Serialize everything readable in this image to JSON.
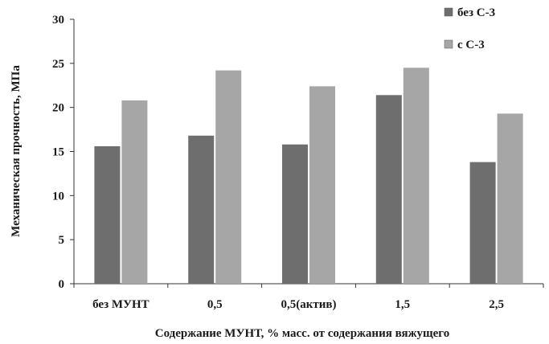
{
  "chart_data": {
    "type": "bar",
    "categories": [
      "без МУНТ",
      "0,5",
      "0,5(актив)",
      "1,5",
      "2,5"
    ],
    "series": [
      {
        "name": "без С-3",
        "values": [
          15.6,
          16.8,
          15.8,
          21.4,
          13.8
        ],
        "color": "#6e6e6e"
      },
      {
        "name": "с С-3",
        "values": [
          20.8,
          24.2,
          22.4,
          24.5,
          19.3
        ],
        "color": "#a6a6a6"
      }
    ],
    "xlabel": "Содержание МУНТ, % масс. от содержания вяжущего",
    "ylabel": "Механическая прочность, МПа",
    "ylim": [
      0,
      30
    ],
    "yticks": [
      0,
      5,
      10,
      15,
      20,
      25,
      30
    ],
    "grid": false,
    "legend": "top-right"
  }
}
